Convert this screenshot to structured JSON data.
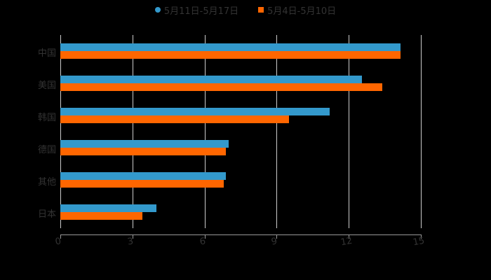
{
  "legend": [
    {
      "label": "5月11日-5月17日",
      "color": "#3399cc",
      "marker": "circle"
    },
    {
      "label": "5月4日-5月10日",
      "color": "#ff6600",
      "marker": "square"
    }
  ],
  "chart_data": {
    "type": "bar",
    "orientation": "horizontal",
    "categories": [
      "中国",
      "美国",
      "韩国",
      "德国",
      "其他",
      "日本"
    ],
    "series": [
      {
        "name": "5月11日-5月17日",
        "color": "#3399cc",
        "values": [
          14.15,
          12.55,
          11.2,
          7.0,
          6.9,
          4.0
        ]
      },
      {
        "name": "5月4日-5月10日",
        "color": "#ff6600",
        "values": [
          14.15,
          13.4,
          9.5,
          6.9,
          6.8,
          3.4
        ]
      }
    ],
    "title": "",
    "xlabel": "",
    "ylabel": "",
    "xlim": [
      0,
      15
    ],
    "xticks": [
      "0",
      "3",
      "6",
      "9",
      "12",
      "15"
    ],
    "grid": true,
    "legend_position": "top"
  }
}
